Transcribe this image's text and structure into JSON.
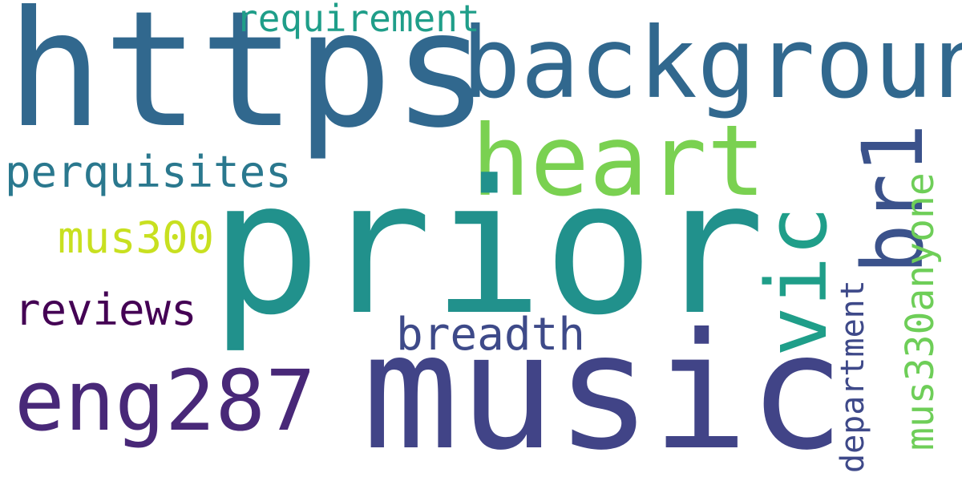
{
  "background": "#ffffff",
  "words": [
    {
      "key": "https",
      "text": "https",
      "color": "#31688e",
      "vertical": false
    },
    {
      "key": "background",
      "text": "background",
      "color": "#31688e",
      "vertical": false
    },
    {
      "key": "requirement",
      "text": "requirement",
      "color": "#1f9e89",
      "vertical": false
    },
    {
      "key": "heart",
      "text": "heart",
      "color": "#7ad151",
      "vertical": false
    },
    {
      "key": "perquisites",
      "text": "perquisites",
      "color": "#2a788e",
      "vertical": false
    },
    {
      "key": "prior",
      "text": "prior",
      "color": "#21918c",
      "vertical": false
    },
    {
      "key": "mus300",
      "text": "mus300",
      "color": "#c8e020",
      "vertical": false
    },
    {
      "key": "reviews",
      "text": "reviews",
      "color": "#440154",
      "vertical": false
    },
    {
      "key": "breadth",
      "text": "breadth",
      "color": "#3e4a89",
      "vertical": false
    },
    {
      "key": "eng287",
      "text": "eng287",
      "color": "#482878",
      "vertical": false
    },
    {
      "key": "music",
      "text": "music",
      "color": "#414487",
      "vertical": false
    },
    {
      "key": "vic",
      "text": "vic",
      "color": "#1f9e89",
      "vertical": true
    },
    {
      "key": "br1",
      "text": "br1",
      "color": "#3b528b",
      "vertical": true
    },
    {
      "key": "mus330anyone",
      "text": "mus330anyone",
      "color": "#6ece58",
      "vertical": true
    },
    {
      "key": "department",
      "text": "department",
      "color": "#3e4989",
      "vertical": true
    }
  ]
}
